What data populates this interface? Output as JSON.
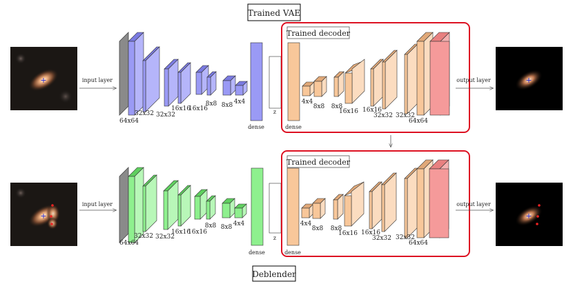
{
  "top": {
    "title": "Trained VAE",
    "input_label": "input layer",
    "output_label": "output layer",
    "decoder_label": "Trained decoder",
    "encoder_layers": [
      {
        "label": "64x64"
      },
      {
        "label": "32x32"
      },
      {
        "label": "32x32"
      },
      {
        "label": "16x16"
      },
      {
        "label": "16x16"
      },
      {
        "label": "8x8"
      },
      {
        "label": "8x8"
      },
      {
        "label": "4x4"
      }
    ],
    "dense_label": "dense",
    "z_label": "z",
    "decoder_dense_label": "dense",
    "decoder_layers": [
      {
        "label": "4x4"
      },
      {
        "label": "8x8"
      },
      {
        "label": "8x8"
      },
      {
        "label": "16x16"
      },
      {
        "label": "16x16"
      },
      {
        "label": "32x32"
      },
      {
        "label": "32x32"
      },
      {
        "label": "64x64"
      }
    ]
  },
  "bottom": {
    "title": "Deblender",
    "input_label": "input layer",
    "output_label": "output layer",
    "decoder_label": "Trained decoder",
    "encoder_layers": [
      {
        "label": "64x64"
      },
      {
        "label": "32x32"
      },
      {
        "label": "32x32"
      },
      {
        "label": "16x16"
      },
      {
        "label": "16x16"
      },
      {
        "label": "8x8"
      },
      {
        "label": "8x8"
      },
      {
        "label": "4x4"
      }
    ],
    "dense_label": "dense",
    "z_label": "z",
    "decoder_dense_label": "dense",
    "decoder_layers": [
      {
        "label": "4x4"
      },
      {
        "label": "8x8"
      },
      {
        "label": "8x8"
      },
      {
        "label": "16x16"
      },
      {
        "label": "16x16"
      },
      {
        "label": "32x32"
      },
      {
        "label": "32x32"
      },
      {
        "label": "64x64"
      }
    ]
  },
  "colors": {
    "encoder_top": "#9a9af5",
    "encoder_bottom": "#8ef08e",
    "decoder": "#f8c79a",
    "output_layer": "#f59a9a",
    "input_layer": "#8a8a8a",
    "highlight_box": "#dd1122",
    "galaxy_marker": "#2222cc",
    "blend_marker": "#ee2222"
  }
}
